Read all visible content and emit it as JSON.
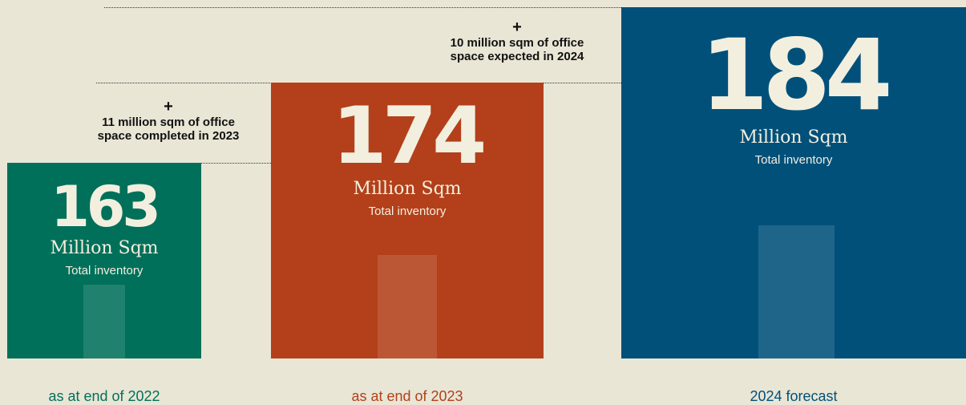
{
  "chart_data": {
    "type": "bar",
    "categories": [
      "as at end of 2022",
      "as at end of 2023",
      "2024 forecast"
    ],
    "values": [
      163,
      174,
      184
    ],
    "unit_label": "Million Sqm",
    "value_sublabel": "Total inventory",
    "annotations": [
      {
        "plus": "+",
        "line1": "11 million sqm of office",
        "line2": "space completed in 2023"
      },
      {
        "plus": "+",
        "line1": "10 million sqm of office",
        "line2": "space expected in 2024"
      }
    ],
    "colors": [
      "#00705a",
      "#b3401a",
      "#00507a"
    ],
    "label_colors": [
      "#00705a",
      "#b3401a",
      "#00507a"
    ],
    "grid": false,
    "title": "",
    "xlabel": "",
    "ylabel": ""
  }
}
